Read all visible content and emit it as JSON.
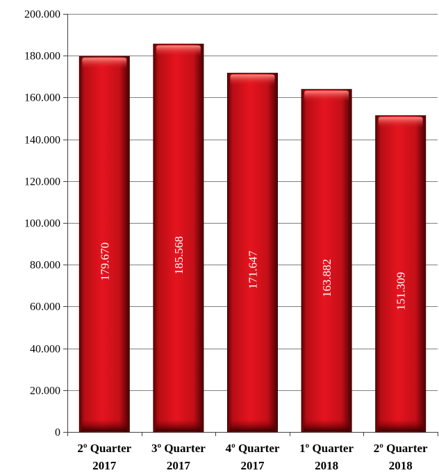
{
  "chart_data": {
    "type": "bar",
    "categories": [
      [
        "2º Quarter",
        "2017"
      ],
      [
        "3º Quarter",
        "2017"
      ],
      [
        "4º Quarter",
        "2017"
      ],
      [
        "1º Quarter",
        "2018"
      ],
      [
        "2º Quarter",
        "2018"
      ]
    ],
    "values": [
      179670,
      185568,
      171647,
      163882,
      151309
    ],
    "data_labels": [
      "179.670",
      "185.568",
      "171.647",
      "163.882",
      "151.309"
    ],
    "title": "",
    "xlabel": "",
    "ylabel": "",
    "ylim": [
      0,
      200000
    ],
    "yticks": [
      0,
      20000,
      40000,
      60000,
      80000,
      100000,
      120000,
      140000,
      160000,
      180000,
      200000
    ],
    "ytick_labels": [
      "0",
      "20.000",
      "40.000",
      "60.000",
      "80.000",
      "100.000",
      "120.000",
      "140.000",
      "160.000",
      "180.000",
      "200.000"
    ],
    "grid": true,
    "legend": "none",
    "colors": {
      "bar": "#d0111b",
      "bar_highlight": "#ff5a50",
      "bar_dark": "#6a0005",
      "bar_outline": "#3a0000",
      "grid": "#7f7f7f",
      "axis": "#404040"
    }
  }
}
